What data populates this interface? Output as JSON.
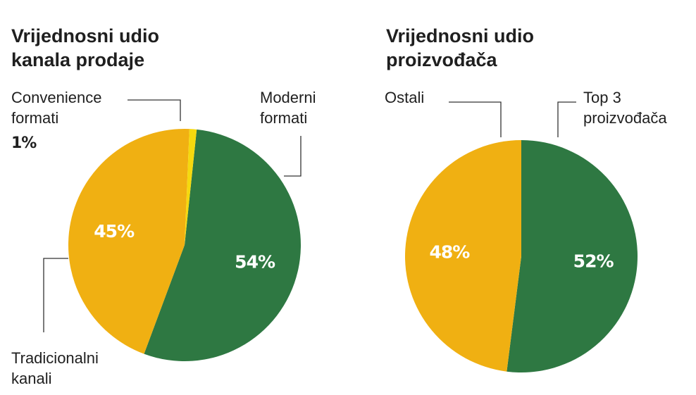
{
  "colors": {
    "green": "#2e7842",
    "orange": "#f0b012",
    "yellow": "#f5d90e",
    "text": "#1f1f1f"
  },
  "chart_data": [
    {
      "type": "pie",
      "title": "Vrijednosni udio kanala prodaje",
      "title_lines": [
        "Vrijednosni udio",
        "kanala prodaje"
      ],
      "slices": [
        {
          "label": "Moderni formati",
          "label_lines": [
            "Moderni",
            "formati"
          ],
          "value": 54,
          "value_label": "54%",
          "color": "#2e7842"
        },
        {
          "label": "Tradicionalni kanali",
          "label_lines": [
            "Tradicionalni",
            "kanali"
          ],
          "value": 45,
          "value_label": "45%",
          "color": "#f0b012"
        },
        {
          "label": "Convenience formati",
          "label_lines": [
            "Convenience",
            "formati"
          ],
          "value": 1,
          "value_label": "1%",
          "color": "#f5d90e"
        }
      ]
    },
    {
      "type": "pie",
      "title": "Vrijednosni udio proizvođača",
      "title_lines": [
        "Vrijednosni udio",
        "proizvođača"
      ],
      "slices": [
        {
          "label": "Top 3 proizvođača",
          "label_lines": [
            "Top 3",
            "proizvođača"
          ],
          "value": 52,
          "value_label": "52%",
          "color": "#2e7842"
        },
        {
          "label": "Ostali",
          "label_lines": [
            "Ostali"
          ],
          "value": 48,
          "value_label": "48%",
          "color": "#f0b012"
        }
      ]
    }
  ]
}
